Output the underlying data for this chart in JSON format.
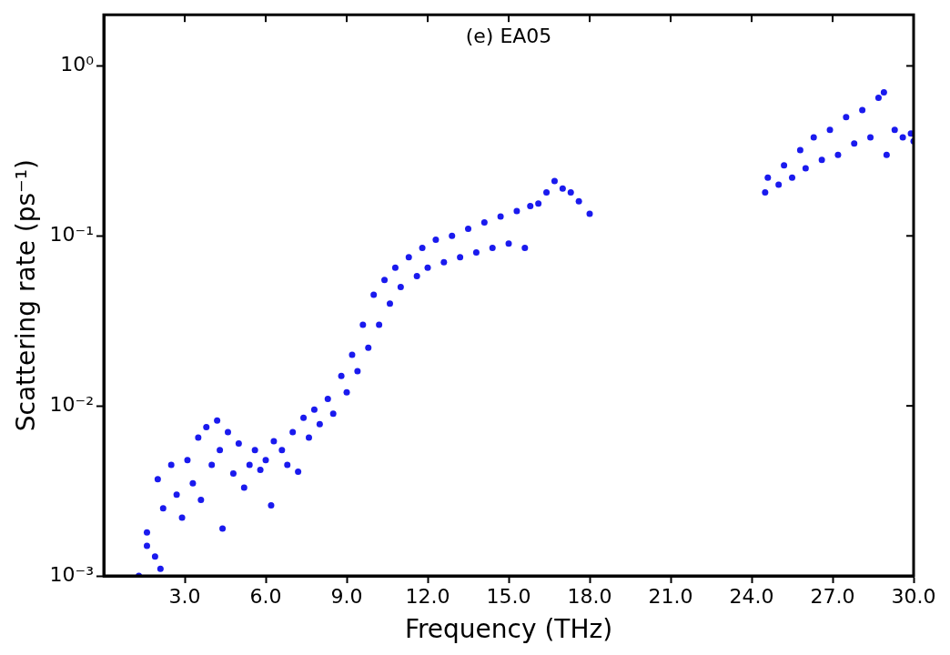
{
  "chart_data": {
    "type": "scatter",
    "xlabel": "Frequency (THz)",
    "ylabel": "Scattering rate (ps⁻¹)",
    "log": "y",
    "grid": false,
    "legend": false,
    "marker": "circle",
    "annotations": [
      "(e) EA05"
    ],
    "xlim": [
      0,
      30
    ],
    "ylim": [
      0.001,
      2
    ],
    "xticks": [
      {
        "value": 3,
        "label": "3.0"
      },
      {
        "value": 6,
        "label": "6.0"
      },
      {
        "value": 9,
        "label": "9.0"
      },
      {
        "value": 12,
        "label": "12.0"
      },
      {
        "value": 15,
        "label": "15.0"
      },
      {
        "value": 18,
        "label": "18.0"
      },
      {
        "value": 21,
        "label": "21.0"
      },
      {
        "value": 24,
        "label": "24.0"
      },
      {
        "value": 27,
        "label": "27.0"
      },
      {
        "value": 30,
        "label": "30.0"
      }
    ],
    "yticks": [
      {
        "value": 0.001,
        "label": "10⁻³"
      },
      {
        "value": 0.01,
        "label": "10⁻²"
      },
      {
        "value": 0.1,
        "label": "10⁻¹"
      },
      {
        "value": 1,
        "label": "10⁰"
      }
    ],
    "series": [
      {
        "color": "#1a1aee",
        "x": [
          1.3,
          1.6,
          1.6,
          1.9,
          2.0,
          2.1,
          2.2,
          2.5,
          2.7,
          2.9,
          3.1,
          3.3,
          3.5,
          3.6,
          3.8,
          4.0,
          4.2,
          4.3,
          4.4,
          4.6,
          4.8,
          5.0,
          5.2,
          5.4,
          5.6,
          5.8,
          6.0,
          6.2,
          6.3,
          6.6,
          6.8,
          7.0,
          7.2,
          7.4,
          7.6,
          7.8,
          8.0,
          8.3,
          8.5,
          8.8,
          9.0,
          9.2,
          9.4,
          9.6,
          9.8,
          10.0,
          10.2,
          10.4,
          10.6,
          10.8,
          11.0,
          11.3,
          11.6,
          11.8,
          12.0,
          12.3,
          12.6,
          12.9,
          13.2,
          13.5,
          13.8,
          14.1,
          14.4,
          14.7,
          15.0,
          15.3,
          15.6,
          15.8,
          16.1,
          16.4,
          16.7,
          17.0,
          17.3,
          17.6,
          18.0,
          24.5,
          24.6,
          25.0,
          25.2,
          25.5,
          25.8,
          26.0,
          26.3,
          26.6,
          26.9,
          27.2,
          27.5,
          27.8,
          28.1,
          28.4,
          28.7,
          28.9,
          29.0,
          29.3,
          29.6,
          29.9,
          30.0
        ],
        "values": [
          0.001,
          0.0018,
          0.0015,
          0.0013,
          0.0037,
          0.0011,
          0.0025,
          0.0045,
          0.003,
          0.0022,
          0.0048,
          0.0035,
          0.0065,
          0.0028,
          0.0075,
          0.0045,
          0.0082,
          0.0055,
          0.0019,
          0.007,
          0.004,
          0.006,
          0.0033,
          0.0045,
          0.0055,
          0.0042,
          0.0048,
          0.0026,
          0.0062,
          0.0055,
          0.0045,
          0.007,
          0.0041,
          0.0085,
          0.0065,
          0.0095,
          0.0078,
          0.011,
          0.009,
          0.015,
          0.012,
          0.02,
          0.016,
          0.03,
          0.022,
          0.045,
          0.03,
          0.055,
          0.04,
          0.065,
          0.05,
          0.075,
          0.058,
          0.085,
          0.065,
          0.095,
          0.07,
          0.1,
          0.075,
          0.11,
          0.08,
          0.12,
          0.085,
          0.13,
          0.09,
          0.14,
          0.085,
          0.15,
          0.155,
          0.18,
          0.21,
          0.19,
          0.18,
          0.16,
          0.135,
          0.18,
          0.22,
          0.2,
          0.26,
          0.22,
          0.32,
          0.25,
          0.38,
          0.28,
          0.42,
          0.3,
          0.5,
          0.35,
          0.55,
          0.38,
          0.65,
          0.7,
          0.3,
          0.42,
          0.38,
          0.4,
          0.36
        ]
      }
    ]
  }
}
